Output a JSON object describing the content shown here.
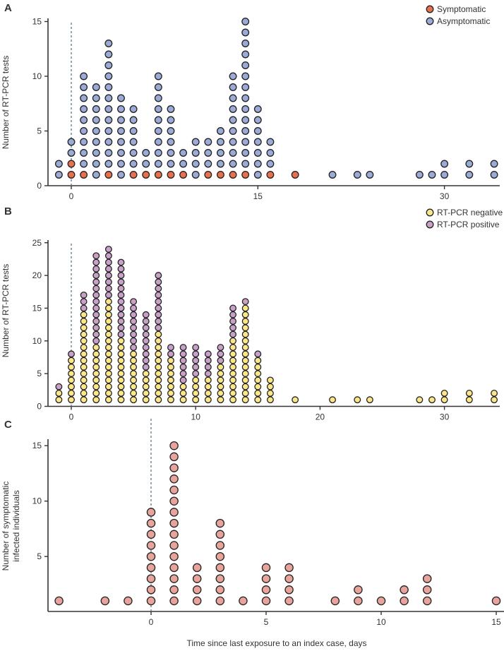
{
  "chart_data": [
    {
      "type": "scatter",
      "subtype": "stacked-dot-plot",
      "panel_label": "A",
      "ylabel": "Number of RT-PCR tests",
      "xlabel": "",
      "xlim": [
        -1,
        34
      ],
      "ylim": [
        0,
        15
      ],
      "xticks": [
        0,
        15,
        30
      ],
      "yticks": [
        0,
        5,
        10,
        15
      ],
      "reference_line_x": 0,
      "legend_position": "top-right",
      "series": [
        {
          "name": "Symptomatic",
          "color": "#e8704f",
          "x": [
            -1,
            0,
            1,
            2,
            3,
            4,
            5,
            6,
            7,
            8,
            9,
            10,
            11,
            12,
            13,
            14,
            15,
            16,
            18,
            21,
            23,
            24,
            28,
            29,
            30,
            32,
            34
          ],
          "values": [
            0,
            2,
            1,
            0,
            1,
            0,
            1,
            1,
            1,
            1,
            1,
            0,
            1,
            1,
            1,
            1,
            0,
            1,
            1,
            0,
            0,
            0,
            0,
            0,
            0,
            0,
            0
          ]
        },
        {
          "name": "Asymptomatic",
          "color": "#9aabd8",
          "x": [
            -1,
            0,
            1,
            2,
            3,
            4,
            5,
            6,
            7,
            8,
            9,
            10,
            11,
            12,
            13,
            14,
            15,
            16,
            18,
            21,
            23,
            24,
            28,
            29,
            30,
            32,
            34
          ],
          "values": [
            2,
            2,
            9,
            9,
            12,
            8,
            6,
            2,
            9,
            6,
            2,
            4,
            3,
            4,
            9,
            14,
            7,
            3,
            0,
            1,
            1,
            1,
            1,
            1,
            2,
            2,
            2
          ]
        }
      ]
    },
    {
      "type": "scatter",
      "subtype": "stacked-dot-plot",
      "panel_label": "B",
      "ylabel": "Number of RT-PCR tests",
      "xlabel": "",
      "xlim": [
        -1,
        34
      ],
      "ylim": [
        0,
        25
      ],
      "xticks": [
        0,
        10,
        20,
        30
      ],
      "yticks": [
        0,
        5,
        10,
        15,
        20,
        25
      ],
      "reference_line_x": 0,
      "legend_position": "top-right",
      "series": [
        {
          "name": "RT-PCR negative",
          "color": "#fbe68a",
          "x": [
            -1,
            0,
            1,
            2,
            3,
            4,
            5,
            6,
            7,
            8,
            9,
            10,
            11,
            12,
            13,
            14,
            15,
            16,
            18,
            21,
            23,
            24,
            28,
            29,
            30,
            32,
            34
          ],
          "values": [
            2,
            7,
            14,
            9,
            16,
            10,
            8,
            5,
            11,
            7,
            3,
            4,
            4,
            6,
            10,
            15,
            7,
            4,
            1,
            1,
            1,
            1,
            1,
            1,
            2,
            2,
            2
          ]
        },
        {
          "name": "RT-PCR positive",
          "color": "#c8a0c8",
          "x": [
            -1,
            0,
            1,
            2,
            3,
            4,
            5,
            6,
            7,
            8,
            9,
            10,
            11,
            12,
            13,
            14,
            15,
            16,
            18,
            21,
            23,
            24,
            28,
            29,
            30,
            32,
            34
          ],
          "values": [
            1,
            1,
            3,
            14,
            8,
            12,
            8,
            9,
            9,
            2,
            6,
            5,
            4,
            3,
            5,
            1,
            1,
            0,
            0,
            0,
            0,
            0,
            0,
            0,
            0,
            0,
            0
          ]
        }
      ]
    },
    {
      "type": "scatter",
      "subtype": "stacked-dot-plot",
      "panel_label": "C",
      "ylabel": "Number of symptomatic infected individuals",
      "ylabel_lines": [
        "Number of symptomatic",
        "infected individuals"
      ],
      "xlabel": "Time since last exposure to an index case, days",
      "xlim": [
        -4,
        15
      ],
      "ylim": [
        1,
        15
      ],
      "xticks": [
        0,
        5,
        10,
        15
      ],
      "yticks": [
        5,
        10,
        15
      ],
      "reference_line_x": 0,
      "series": [
        {
          "name": "Symptomatic infected",
          "color": "#e8a49c",
          "x": [
            -4,
            -2,
            -1,
            0,
            1,
            2,
            3,
            4,
            5,
            6,
            8,
            9,
            10,
            11,
            12,
            15
          ],
          "values": [
            1,
            1,
            1,
            9,
            15,
            4,
            8,
            1,
            4,
            4,
            1,
            2,
            1,
            2,
            3,
            1
          ]
        }
      ]
    }
  ]
}
